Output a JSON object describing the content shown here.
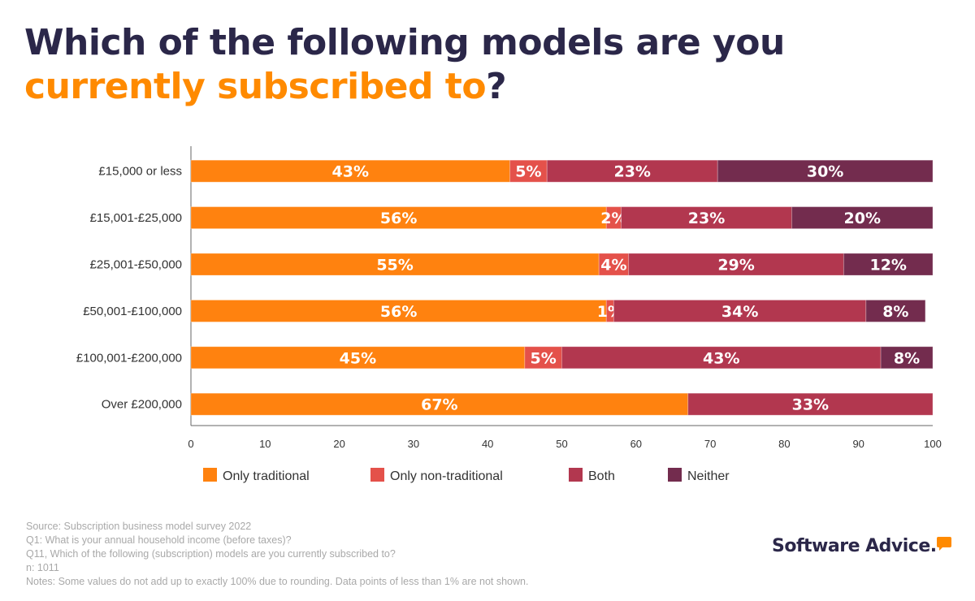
{
  "title": {
    "part1": "Which of the following models are you ",
    "highlight": "currently subscribed to",
    "part2": "?"
  },
  "colors": {
    "title": "#2b2749",
    "highlight": "#ff8a00"
  },
  "chart_data": {
    "type": "bar",
    "orientation": "horizontal",
    "stacked": true,
    "categories": [
      "£15,000 or less",
      "£15,001-£25,000",
      "£25,001-£50,000",
      "£50,001-£100,000",
      "£100,001-£200,000",
      "Over £200,000"
    ],
    "series": [
      {
        "name": "Only traditional",
        "color": "#ff820f",
        "values": [
          43,
          56,
          55,
          56,
          45,
          67
        ]
      },
      {
        "name": "Only non-traditional",
        "color": "#e4514a",
        "values": [
          5,
          2,
          4,
          1,
          5,
          null
        ]
      },
      {
        "name": "Both",
        "color": "#b2374f",
        "values": [
          23,
          23,
          29,
          34,
          43,
          33
        ]
      },
      {
        "name": "Neither",
        "color": "#732c4e",
        "values": [
          30,
          20,
          12,
          8,
          8,
          null
        ]
      }
    ],
    "xlim": [
      0,
      100
    ],
    "xticks": [
      0,
      10,
      20,
      30,
      40,
      50,
      60,
      70,
      80,
      90,
      100
    ],
    "grid": false,
    "legend": "bottom",
    "value_suffix": "%"
  },
  "footer": {
    "lines": [
      "Source: Subscription business model survey 2022",
      "Q1: What is your annual household income (before taxes)?",
      "Q11, Which of the following (subscription) models are you currently subscribed to?",
      "n: 1011",
      "Notes: Some values do not add up to exactly 100% due to rounding. Data points of less than 1% are not shown."
    ]
  },
  "logo": {
    "text": "Software Advice."
  }
}
